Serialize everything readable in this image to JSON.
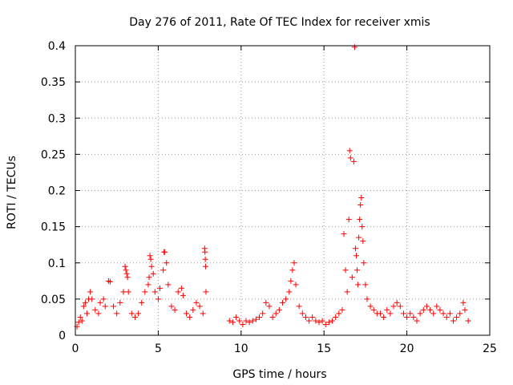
{
  "chart_data": {
    "type": "scatter",
    "title": "Day 276 of 2011, Rate Of TEC Index for receiver xmis",
    "xlabel": "GPS time / hours",
    "ylabel": "ROTI / TECUs",
    "xlim": [
      0,
      25
    ],
    "ylim": [
      0,
      0.4
    ],
    "x_ticks": [
      "0",
      "5",
      "10",
      "15",
      "20",
      "25"
    ],
    "y_ticks": [
      "0",
      "0.05",
      "0.1",
      "0.15",
      "0.2",
      "0.25",
      "0.3",
      "0.35",
      "0.4"
    ],
    "grid": true,
    "marker": "plus",
    "series_color": "#ff0000",
    "data_gap_hours": [
      7.9,
      9.3
    ],
    "series": [
      {
        "points": [
          [
            0.1,
            0.012
          ],
          [
            0.2,
            0.018
          ],
          [
            0.3,
            0.025
          ],
          [
            0.4,
            0.02
          ],
          [
            0.5,
            0.04
          ],
          [
            0.6,
            0.045
          ],
          [
            0.7,
            0.03
          ],
          [
            0.8,
            0.05
          ],
          [
            0.9,
            0.06
          ],
          [
            1.0,
            0.05
          ],
          [
            1.2,
            0.035
          ],
          [
            1.4,
            0.03
          ],
          [
            1.5,
            0.045
          ],
          [
            1.7,
            0.05
          ],
          [
            1.8,
            0.04
          ],
          [
            2.0,
            0.075
          ],
          [
            2.1,
            0.074
          ],
          [
            2.3,
            0.04
          ],
          [
            2.5,
            0.03
          ],
          [
            2.7,
            0.045
          ],
          [
            2.9,
            0.06
          ],
          [
            3.0,
            0.095
          ],
          [
            3.05,
            0.09
          ],
          [
            3.1,
            0.085
          ],
          [
            3.15,
            0.08
          ],
          [
            3.2,
            0.06
          ],
          [
            3.4,
            0.03
          ],
          [
            3.6,
            0.025
          ],
          [
            3.8,
            0.03
          ],
          [
            4.0,
            0.045
          ],
          [
            4.2,
            0.06
          ],
          [
            4.4,
            0.07
          ],
          [
            4.45,
            0.08
          ],
          [
            4.5,
            0.11
          ],
          [
            4.55,
            0.105
          ],
          [
            4.6,
            0.095
          ],
          [
            4.7,
            0.085
          ],
          [
            4.8,
            0.06
          ],
          [
            5.0,
            0.05
          ],
          [
            5.1,
            0.065
          ],
          [
            5.3,
            0.09
          ],
          [
            5.35,
            0.115
          ],
          [
            5.4,
            0.115
          ],
          [
            5.5,
            0.1
          ],
          [
            5.6,
            0.07
          ],
          [
            5.8,
            0.04
          ],
          [
            6.0,
            0.035
          ],
          [
            6.2,
            0.06
          ],
          [
            6.4,
            0.065
          ],
          [
            6.5,
            0.055
          ],
          [
            6.7,
            0.03
          ],
          [
            6.9,
            0.025
          ],
          [
            7.1,
            0.035
          ],
          [
            7.3,
            0.045
          ],
          [
            7.5,
            0.04
          ],
          [
            7.7,
            0.03
          ],
          [
            7.8,
            0.12
          ],
          [
            7.82,
            0.115
          ],
          [
            7.84,
            0.105
          ],
          [
            7.86,
            0.095
          ],
          [
            7.88,
            0.06
          ],
          [
            9.3,
            0.02
          ],
          [
            9.5,
            0.018
          ],
          [
            9.7,
            0.025
          ],
          [
            9.9,
            0.02
          ],
          [
            10.1,
            0.015
          ],
          [
            10.3,
            0.02
          ],
          [
            10.5,
            0.018
          ],
          [
            10.7,
            0.02
          ],
          [
            10.9,
            0.022
          ],
          [
            11.1,
            0.025
          ],
          [
            11.3,
            0.03
          ],
          [
            11.5,
            0.045
          ],
          [
            11.7,
            0.04
          ],
          [
            11.9,
            0.025
          ],
          [
            12.1,
            0.03
          ],
          [
            12.3,
            0.035
          ],
          [
            12.5,
            0.045
          ],
          [
            12.7,
            0.05
          ],
          [
            12.9,
            0.06
          ],
          [
            13.0,
            0.075
          ],
          [
            13.1,
            0.09
          ],
          [
            13.2,
            0.1
          ],
          [
            13.3,
            0.07
          ],
          [
            13.5,
            0.04
          ],
          [
            13.7,
            0.03
          ],
          [
            13.9,
            0.025
          ],
          [
            14.1,
            0.02
          ],
          [
            14.3,
            0.025
          ],
          [
            14.5,
            0.02
          ],
          [
            14.7,
            0.018
          ],
          [
            14.9,
            0.02
          ],
          [
            15.1,
            0.015
          ],
          [
            15.3,
            0.018
          ],
          [
            15.5,
            0.02
          ],
          [
            15.7,
            0.025
          ],
          [
            15.9,
            0.03
          ],
          [
            16.1,
            0.035
          ],
          [
            16.2,
            0.14
          ],
          [
            16.3,
            0.09
          ],
          [
            16.4,
            0.06
          ],
          [
            16.5,
            0.16
          ],
          [
            16.55,
            0.255
          ],
          [
            16.6,
            0.245
          ],
          [
            16.7,
            0.08
          ],
          [
            16.8,
            0.24
          ],
          [
            16.85,
            0.398
          ],
          [
            16.9,
            0.12
          ],
          [
            16.95,
            0.11
          ],
          [
            17.0,
            0.09
          ],
          [
            17.05,
            0.07
          ],
          [
            17.1,
            0.135
          ],
          [
            17.15,
            0.16
          ],
          [
            17.2,
            0.18
          ],
          [
            17.25,
            0.19
          ],
          [
            17.3,
            0.15
          ],
          [
            17.35,
            0.13
          ],
          [
            17.4,
            0.1
          ],
          [
            17.5,
            0.07
          ],
          [
            17.6,
            0.05
          ],
          [
            17.8,
            0.04
          ],
          [
            18.0,
            0.035
          ],
          [
            18.2,
            0.03
          ],
          [
            18.4,
            0.03
          ],
          [
            18.6,
            0.025
          ],
          [
            18.8,
            0.035
          ],
          [
            19.0,
            0.03
          ],
          [
            19.2,
            0.04
          ],
          [
            19.4,
            0.045
          ],
          [
            19.6,
            0.04
          ],
          [
            19.8,
            0.03
          ],
          [
            20.0,
            0.025
          ],
          [
            20.2,
            0.03
          ],
          [
            20.4,
            0.025
          ],
          [
            20.6,
            0.02
          ],
          [
            20.8,
            0.03
          ],
          [
            21.0,
            0.035
          ],
          [
            21.2,
            0.04
          ],
          [
            21.4,
            0.035
          ],
          [
            21.6,
            0.03
          ],
          [
            21.8,
            0.04
          ],
          [
            22.0,
            0.035
          ],
          [
            22.2,
            0.03
          ],
          [
            22.4,
            0.025
          ],
          [
            22.6,
            0.03
          ],
          [
            22.8,
            0.02
          ],
          [
            23.0,
            0.025
          ],
          [
            23.2,
            0.03
          ],
          [
            23.4,
            0.045
          ],
          [
            23.5,
            0.035
          ],
          [
            23.7,
            0.02
          ]
        ]
      }
    ]
  }
}
